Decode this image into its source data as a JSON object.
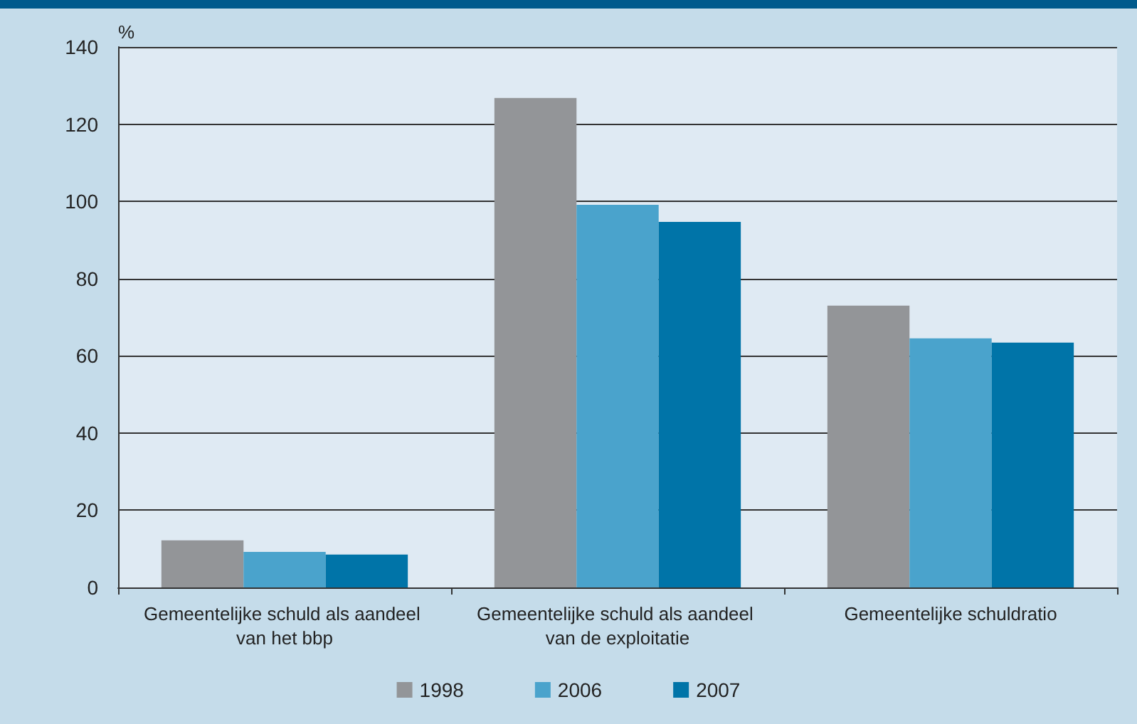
{
  "chart_data": {
    "type": "bar",
    "ylabel": "%",
    "categories": [
      "Gemeentelijke schuld als aandeel van het bbp",
      "Gemeentelijke schuld als aandeel van de exploitatie",
      "Gemeentelijke schuldratio"
    ],
    "series": [
      {
        "name": "1998",
        "color": "#939598",
        "values": [
          12.2,
          126.8,
          73
        ]
      },
      {
        "name": "2006",
        "color": "#4aa3cc",
        "values": [
          9.2,
          99.1,
          64.5
        ]
      },
      {
        "name": "2007",
        "color": "#0074a8",
        "values": [
          8.5,
          94.7,
          63.4
        ]
      }
    ],
    "ylim": [
      0,
      140
    ],
    "yticks": [
      0,
      20,
      40,
      60,
      80,
      100,
      120,
      140
    ],
    "grid": "y",
    "legend": "bottom"
  }
}
